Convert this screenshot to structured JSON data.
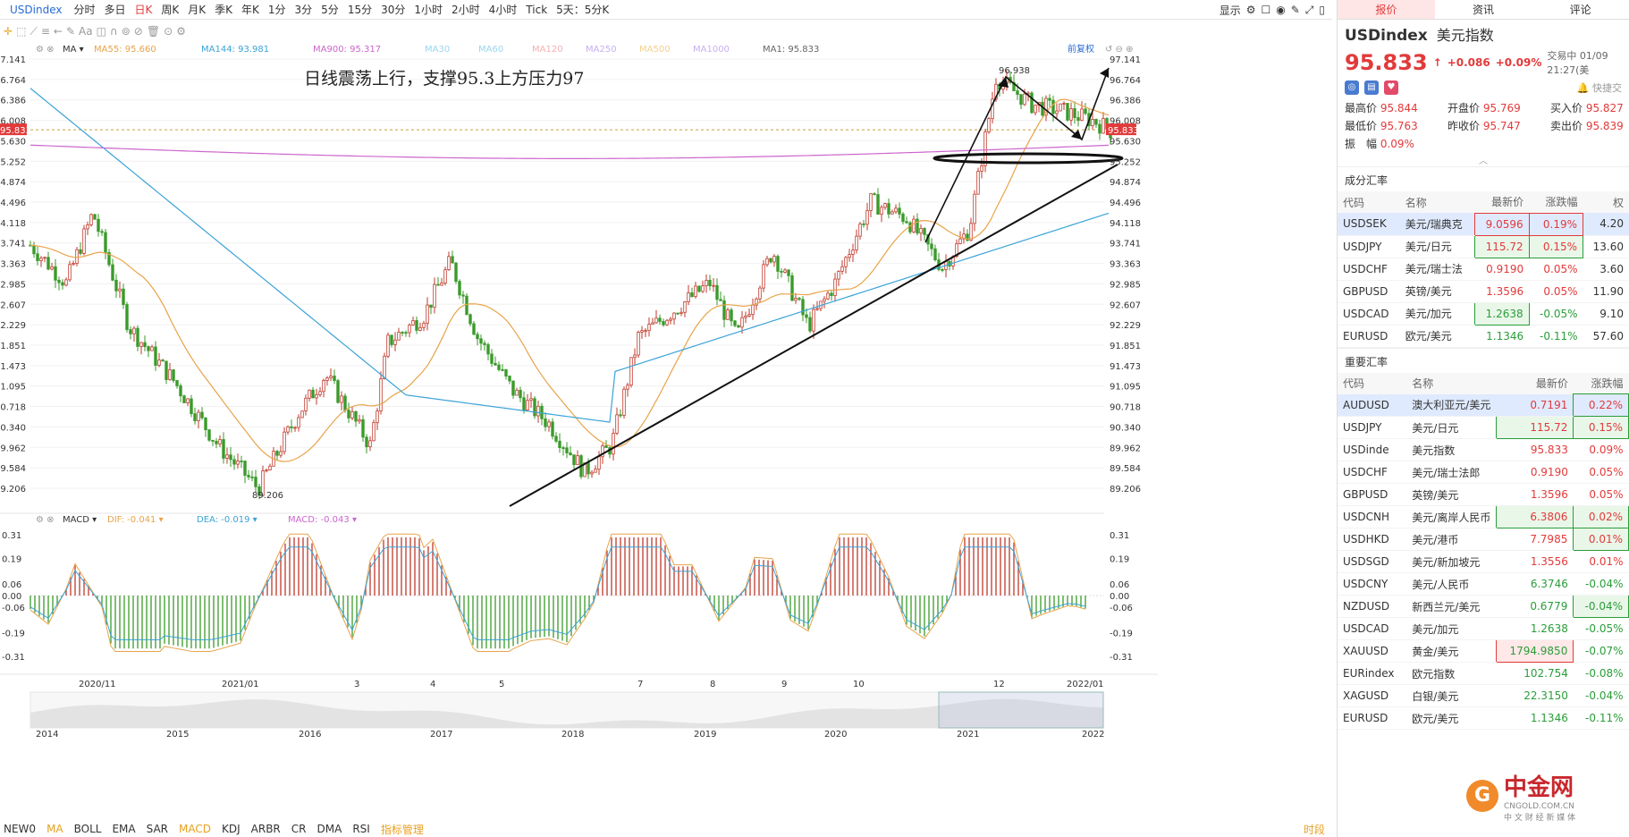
{
  "topbar": {
    "symbol": "USDindex",
    "periods": [
      "分时",
      "多日",
      "日K",
      "周K",
      "月K",
      "季K",
      "年K",
      "1分",
      "3分",
      "5分",
      "15分",
      "30分",
      "1小时",
      "2小时",
      "4小时",
      "Tick",
      "5天：5分K"
    ],
    "active": "日K",
    "right": [
      "显示"
    ]
  },
  "toolbar": {
    "items": [
      "Aa"
    ]
  },
  "ma_legend": {
    "label": "MA",
    "items": [
      {
        "t": "MA55: 95.660",
        "c": "#e8a34a"
      },
      {
        "t": "MA144: 93.981",
        "c": "#3aa3d8"
      },
      {
        "t": "MA900: 95.317",
        "c": "#cc66cc"
      },
      {
        "t": "MA30",
        "c": "#9ad6f0"
      },
      {
        "t": "MA60",
        "c": "#9ad6f0"
      },
      {
        "t": "MA120",
        "c": "#f5b0b0"
      },
      {
        "t": "MA250",
        "c": "#c7b0f0"
      },
      {
        "t": "MA500",
        "c": "#f5d090"
      },
      {
        "t": "MA1000",
        "c": "#c7b0f0"
      },
      {
        "t": "MA1: 95.833",
        "c": "#666"
      }
    ],
    "fuquan": "前复权"
  },
  "annotation": "日线震荡上行，支撑95.3上方压力97",
  "price_axis": [
    "97.141",
    "96.764",
    "96.386",
    "96.008",
    "95.630",
    "95.252",
    "94.874",
    "94.496",
    "94.118",
    "93.741",
    "93.363",
    "92.985",
    "92.607",
    "92.229",
    "91.851",
    "91.473",
    "91.095",
    "90.718",
    "90.340",
    "89.962",
    "89.584",
    "89.206"
  ],
  "current_price_tag": "95.833",
  "high_label": "96.938",
  "low_label": "89.206",
  "macd_legend": {
    "label": "MACD",
    "dif": "DIF: -0.041",
    "dea": "DEA: -0.019",
    "macd": "MACD: -0.043"
  },
  "macd_axis": [
    "0.31",
    "0.19",
    "0.06",
    "0.00",
    "-0.06",
    "-0.19",
    "-0.31"
  ],
  "time_axis": [
    "2020/11",
    "2021/01",
    "3",
    "4",
    "5",
    "7",
    "8",
    "9",
    "10",
    "12",
    "2022/01"
  ],
  "overview_axis": [
    "2014",
    "2015",
    "2016",
    "2017",
    "2018",
    "2019",
    "2020",
    "2021",
    "2022"
  ],
  "bottom_tabs": [
    "NEW0",
    "MA",
    "BOLL",
    "EMA",
    "SAR",
    "MACD",
    "KDJ",
    "ARBR",
    "CR",
    "DMA",
    "RSI",
    "指标管理"
  ],
  "bottom_right": "时段",
  "rpanel": {
    "tabs": [
      "报价",
      "资讯",
      "评论"
    ],
    "symbol": "USDindex",
    "cn_name": "美元指数",
    "price": "95.833",
    "arrow": "↑",
    "change": "+0.086",
    "pct": "+0.09%",
    "trade_status": "交易中 01/09 21:27(美",
    "quick": "快捷交",
    "stats": [
      [
        "最高价",
        "95.844"
      ],
      [
        "开盘价",
        "95.769"
      ],
      [
        "买入价",
        "95.827"
      ],
      [
        "最低价",
        "95.763"
      ],
      [
        "昨收价",
        "95.747"
      ],
      [
        "卖出价",
        "95.839"
      ],
      [
        "振　幅",
        "0.09%"
      ]
    ],
    "section1": "成分汇率",
    "headers1": [
      "代码",
      "名称",
      "最新价",
      "涨跌幅",
      "权"
    ],
    "rows1": [
      [
        "USDSEK",
        "美元/瑞典克",
        "9.0596",
        "0.19%",
        "4.20"
      ],
      [
        "USDJPY",
        "美元/日元",
        "115.72",
        "0.15%",
        "13.60"
      ],
      [
        "USDCHF",
        "美元/瑞士法",
        "0.9190",
        "0.05%",
        "3.60"
      ],
      [
        "GBPUSD",
        "英镑/美元",
        "1.3596",
        "0.05%",
        "11.90"
      ],
      [
        "USDCAD",
        "美元/加元",
        "1.2638",
        "-0.05%",
        "9.10"
      ],
      [
        "EURUSD",
        "欧元/美元",
        "1.1346",
        "-0.11%",
        "57.60"
      ]
    ],
    "section2": "重要汇率",
    "headers2": [
      "代码",
      "名称",
      "最新价",
      "涨跌幅"
    ],
    "rows2": [
      [
        "AUDUSD",
        "澳大利亚元/美元",
        "0.7191",
        "0.22%"
      ],
      [
        "USDJPY",
        "美元/日元",
        "115.72",
        "0.15%"
      ],
      [
        "USDinde",
        "美元指数",
        "95.833",
        "0.09%"
      ],
      [
        "USDCHF",
        "美元/瑞士法郎",
        "0.9190",
        "0.05%"
      ],
      [
        "GBPUSD",
        "英镑/美元",
        "1.3596",
        "0.05%"
      ],
      [
        "USDCNH",
        "美元/离岸人民币",
        "6.3806",
        "0.02%"
      ],
      [
        "USDHKD",
        "美元/港币",
        "7.7985",
        "0.01%"
      ],
      [
        "USDSGD",
        "美元/新加坡元",
        "1.3556",
        "0.01%"
      ],
      [
        "USDCNY",
        "美元/人民币",
        "6.3746",
        "-0.04%"
      ],
      [
        "NZDUSD",
        "新西兰元/美元",
        "0.6779",
        "-0.04%"
      ],
      [
        "USDCAD",
        "美元/加元",
        "1.2638",
        "-0.05%"
      ],
      [
        "XAUUSD",
        "黄金/美元",
        "1794.9850",
        "-0.07%"
      ],
      [
        "EURindex",
        "欧元指数",
        "102.754",
        "-0.08%"
      ],
      [
        "XAGUSD",
        "白银/美元",
        "22.3150",
        "-0.04%"
      ],
      [
        "EURUSD",
        "欧元/美元",
        "1.1346",
        "-0.11%"
      ]
    ]
  },
  "logo": {
    "main": "中金网",
    "sub": "CNGOLD.COM.CN",
    "sub2": "中 文 财 经 新 媒 体"
  }
}
